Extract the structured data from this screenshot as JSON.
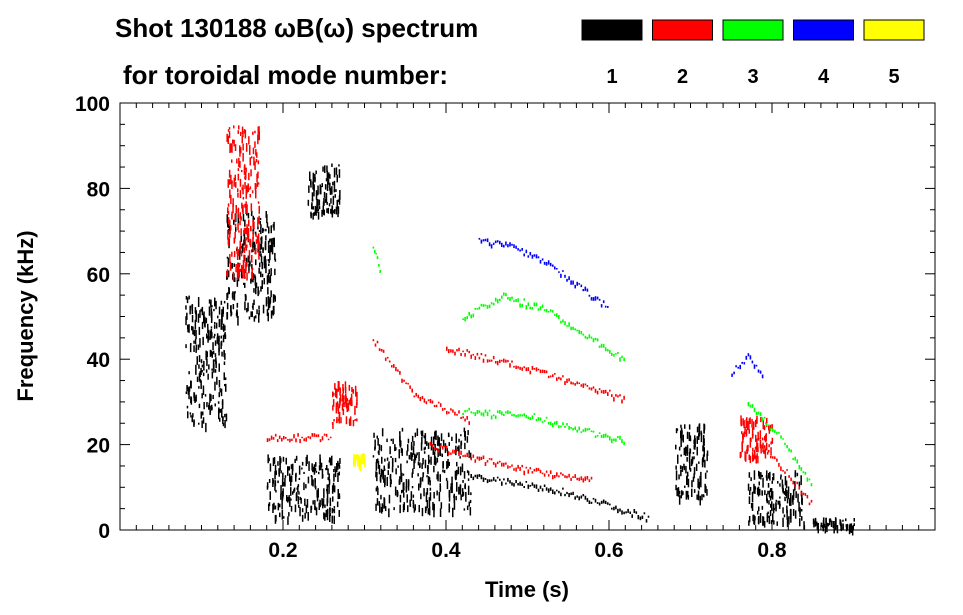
{
  "chart_data": {
    "type": "heatmap",
    "title": "Shot 130188 ωB(ω) spectrum",
    "subtitle": "for toroidal mode number:",
    "xlabel": "Time (s)",
    "ylabel": "Frequency (kHz)",
    "xlim": [
      0,
      1.0
    ],
    "ylim": [
      0,
      100
    ],
    "xticks": [
      0.2,
      0.4,
      0.6,
      0.8
    ],
    "xtick_labels": [
      "0.2",
      "0.4",
      "0.6",
      "0.8"
    ],
    "yticks": [
      0,
      20,
      40,
      60,
      80,
      100
    ],
    "ytick_labels": [
      "0",
      "20",
      "40",
      "60",
      "80",
      "100"
    ],
    "legend": [
      {
        "mode": "1",
        "color": "#000000"
      },
      {
        "mode": "2",
        "color": "#ff0000"
      },
      {
        "mode": "3",
        "color": "#00ff00"
      },
      {
        "mode": "4",
        "color": "#0000ff"
      },
      {
        "mode": "5",
        "color": "#ffff00"
      }
    ],
    "legend_placement": "top-right",
    "blobs": [
      {
        "mode": 1,
        "t": [
          0.08,
          0.13
        ],
        "f": [
          25,
          55
        ]
      },
      {
        "mode": 1,
        "t": [
          0.13,
          0.19
        ],
        "f": [
          50,
          75
        ]
      },
      {
        "mode": 1,
        "t": [
          0.18,
          0.27
        ],
        "f": [
          3,
          18
        ]
      },
      {
        "mode": 1,
        "t": [
          0.23,
          0.27
        ],
        "f": [
          74,
          86
        ]
      },
      {
        "mode": 1,
        "t": [
          0.31,
          0.43
        ],
        "f": [
          5,
          24
        ]
      },
      {
        "mode": 1,
        "t": [
          0.68,
          0.72
        ],
        "f": [
          8,
          25
        ]
      },
      {
        "mode": 1,
        "t": [
          0.77,
          0.84
        ],
        "f": [
          2,
          14
        ]
      },
      {
        "mode": 1,
        "t": [
          0.85,
          0.9
        ],
        "f": [
          1,
          3
        ]
      },
      {
        "mode": 2,
        "t": [
          0.13,
          0.17
        ],
        "f": [
          60,
          95
        ]
      },
      {
        "mode": 2,
        "t": [
          0.26,
          0.29
        ],
        "f": [
          25,
          35
        ]
      },
      {
        "mode": 2,
        "t": [
          0.76,
          0.8
        ],
        "f": [
          17,
          27
        ]
      },
      {
        "mode": 5,
        "t": [
          0.285,
          0.3
        ],
        "f": [
          16,
          18
        ]
      }
    ],
    "tracks": [
      {
        "mode": 1,
        "points": [
          [
            0.43,
            13
          ],
          [
            0.55,
            9
          ],
          [
            0.65,
            3
          ]
        ]
      },
      {
        "mode": 2,
        "points": [
          [
            0.18,
            22
          ],
          [
            0.26,
            22
          ]
        ]
      },
      {
        "mode": 2,
        "points": [
          [
            0.31,
            45
          ],
          [
            0.36,
            32
          ],
          [
            0.43,
            26
          ]
        ]
      },
      {
        "mode": 2,
        "points": [
          [
            0.38,
            20
          ],
          [
            0.48,
            15
          ],
          [
            0.58,
            12
          ]
        ]
      },
      {
        "mode": 2,
        "points": [
          [
            0.4,
            43
          ],
          [
            0.5,
            38
          ],
          [
            0.62,
            31
          ]
        ]
      },
      {
        "mode": 2,
        "points": [
          [
            0.78,
            22
          ],
          [
            0.82,
            13
          ],
          [
            0.85,
            6
          ]
        ]
      },
      {
        "mode": 3,
        "points": [
          [
            0.42,
            50
          ],
          [
            0.47,
            55
          ],
          [
            0.52,
            52
          ],
          [
            0.62,
            40
          ]
        ]
      },
      {
        "mode": 3,
        "points": [
          [
            0.42,
            28
          ],
          [
            0.5,
            27
          ],
          [
            0.62,
            21
          ]
        ]
      },
      {
        "mode": 3,
        "points": [
          [
            0.77,
            30
          ],
          [
            0.81,
            22
          ],
          [
            0.85,
            10
          ]
        ]
      },
      {
        "mode": 3,
        "points": [
          [
            0.31,
            67
          ],
          [
            0.32,
            60
          ]
        ]
      },
      {
        "mode": 4,
        "points": [
          [
            0.44,
            68
          ],
          [
            0.48,
            67
          ],
          [
            0.53,
            62
          ],
          [
            0.6,
            52
          ]
        ]
      },
      {
        "mode": 4,
        "points": [
          [
            0.75,
            37
          ],
          [
            0.77,
            41
          ],
          [
            0.79,
            36
          ]
        ]
      }
    ]
  }
}
